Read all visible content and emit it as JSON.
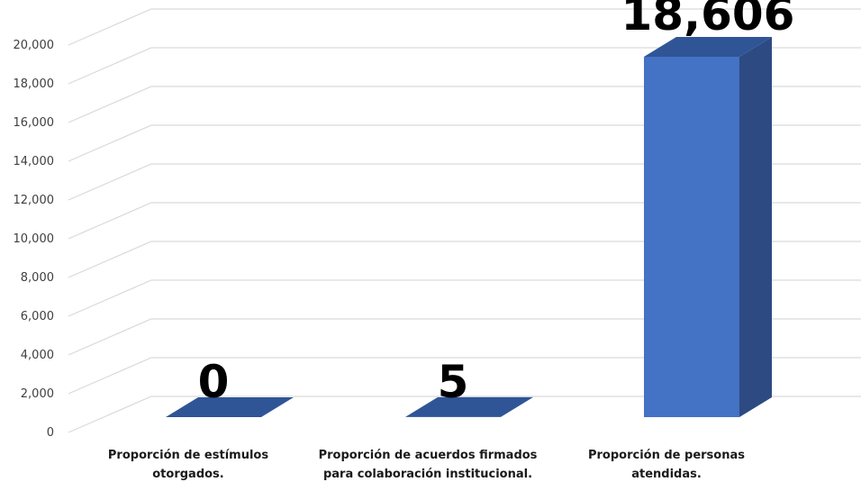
{
  "chart_data": {
    "type": "bar",
    "style": "3d-column",
    "categories": [
      [
        "Proporción de estímulos",
        "otorgados."
      ],
      [
        "Proporción de acuerdos firmados",
        "para colaboración institucional."
      ],
      [
        "Proporción de personas",
        "atendidas."
      ]
    ],
    "values": [
      0,
      5,
      18606
    ],
    "data_labels": [
      "0",
      "5",
      "18,606"
    ],
    "ylim": [
      0,
      20000
    ],
    "yticks": [
      "0",
      "2,000",
      "4,000",
      "6,000",
      "8,000",
      "10,000",
      "12,000",
      "14,000",
      "16,000",
      "18,000",
      "20,000"
    ],
    "grid": true,
    "legend": "none",
    "colors": {
      "front": "#4472C4",
      "top": "#2F5597",
      "side": "#2E4A82",
      "grid": "#D9D9D9"
    }
  }
}
